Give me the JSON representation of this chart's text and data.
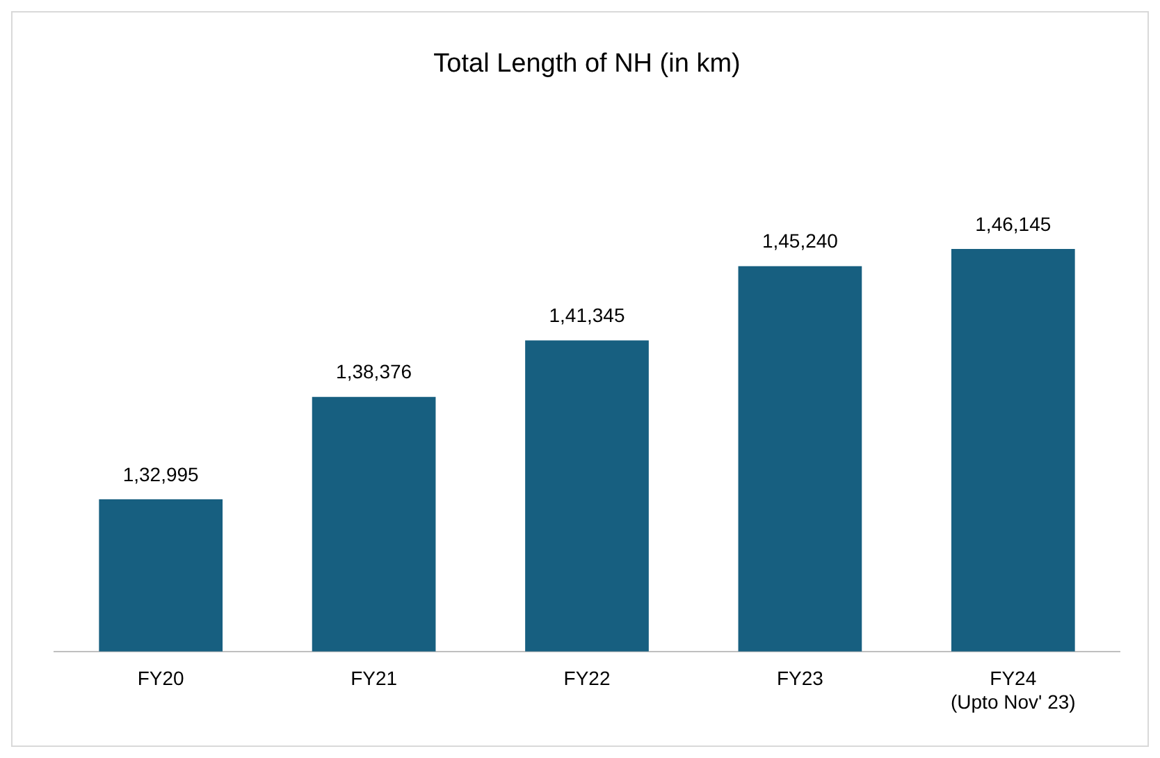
{
  "chart_data": {
    "type": "bar",
    "title": "Total Length of NH (in km)",
    "categories": [
      "FY20",
      "FY21",
      "FY22",
      "FY23",
      "FY24\n(Upto Nov' 23)"
    ],
    "values": [
      132995,
      138376,
      141345,
      145240,
      146145
    ],
    "value_labels": [
      "1,32,995",
      "1,38,376",
      "1,41,345",
      "1,45,240",
      "1,46,145"
    ],
    "color": "#175f80",
    "grid": false,
    "legend": false
  }
}
